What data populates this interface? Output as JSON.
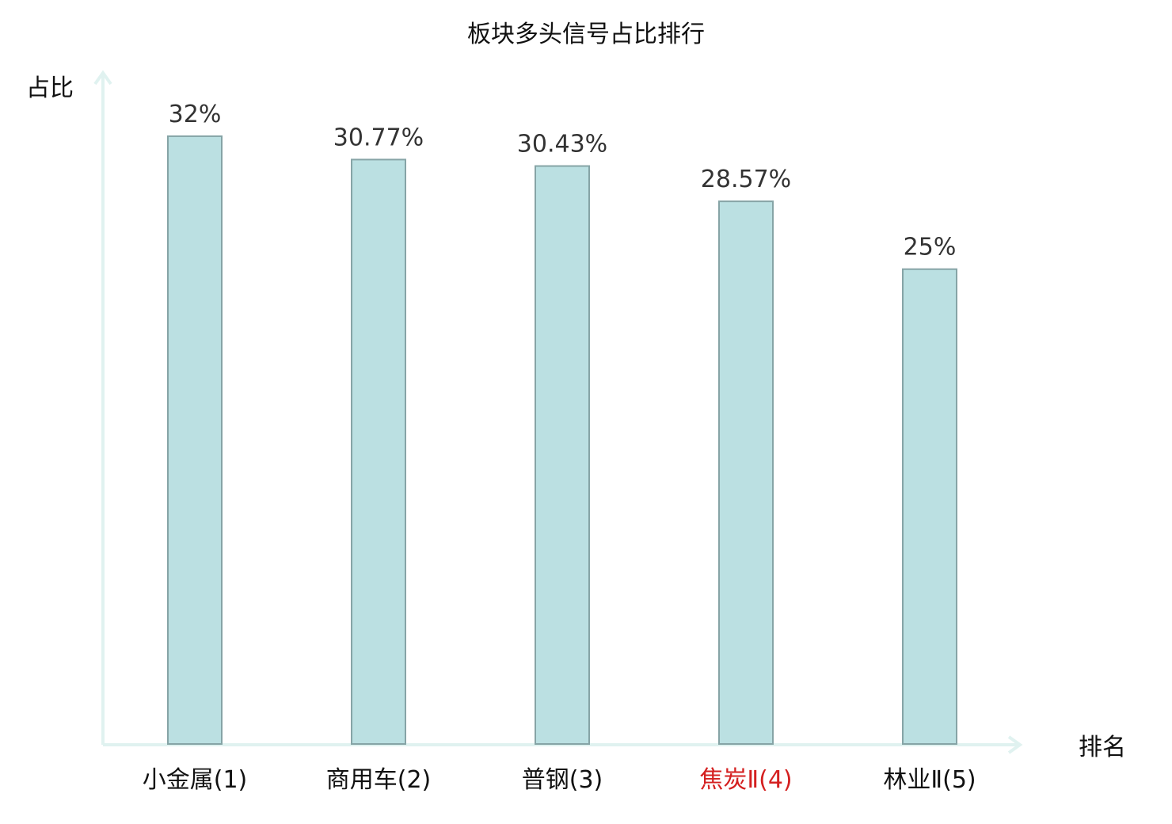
{
  "chart_data": {
    "type": "bar",
    "title": "板块多头信号占比排行",
    "ylabel": "占比",
    "xlabel": "排名",
    "ylim": [
      0,
      35
    ],
    "grid": false,
    "categories": [
      "小金属(1)",
      "商用车(2)",
      "普钢(3)",
      "焦炭Ⅱ(4)",
      "林业Ⅱ(5)"
    ],
    "values": [
      32,
      30.77,
      30.43,
      28.57,
      25
    ],
    "value_labels": [
      "32%",
      "30.77%",
      "30.43%",
      "28.57%",
      "25%"
    ],
    "highlight_index": 3
  },
  "colors": {
    "bar_fill": "#bbe0e2",
    "bar_stroke": "#86a4a6",
    "axis": "#e0f2f0",
    "text": "#111111",
    "value_text": "#333333",
    "highlight_text": "#d42020"
  }
}
